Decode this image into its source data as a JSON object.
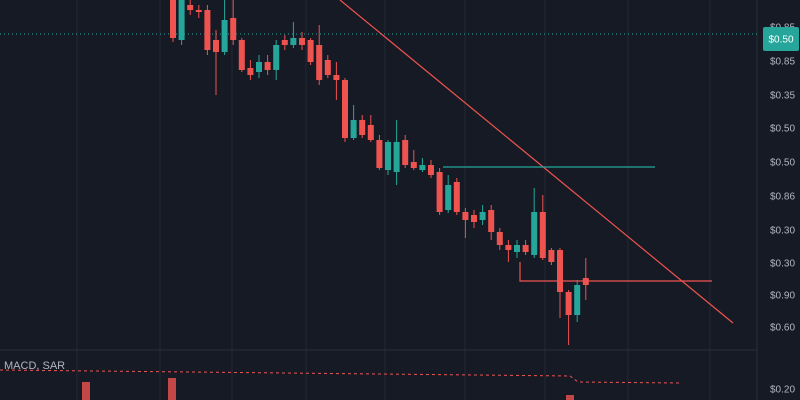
{
  "chart_data": {
    "type": "candlestick",
    "indicator_label": "MACD, SAR",
    "price_axis_labels": [
      "$0.85",
      "$0.85",
      "$0.35",
      "$0.50",
      "$0.50",
      "$0.86",
      "$0.30",
      "$0.30",
      "$0.90",
      "$0.60",
      "$0.20"
    ],
    "current_price_badge": "$0.50",
    "up_color": "#26a69a",
    "down_color": "#ef5350",
    "ylim": [
      0,
      100
    ],
    "open": [
      100,
      90,
      98.75,
      97.5,
      97.5,
      90,
      87,
      95.5,
      90,
      83,
      82,
      84.5,
      82.5,
      90,
      88.75,
      90.5,
      90,
      88.75,
      85,
      81.25,
      80,
      65.5,
      70,
      68.75,
      65,
      57.5,
      57,
      65,
      59.5,
      57.5,
      58.75,
      57,
      47.5,
      54.5,
      47,
      46.25,
      45,
      47.5,
      42,
      38.75,
      37,
      38.75,
      36.25,
      47,
      37.5,
      37.5,
      27,
      21.25,
      30.5
    ],
    "high": [
      100,
      100,
      100,
      98.75,
      98.75,
      92.5,
      100,
      100,
      90.5,
      85,
      86.25,
      86.25,
      90,
      91.25,
      94.5,
      92,
      90.5,
      93.75,
      86.25,
      84.5,
      80.5,
      73.75,
      71.25,
      71.25,
      66.25,
      65,
      70,
      66.25,
      62.5,
      60.5,
      60,
      58,
      56.25,
      55.5,
      48,
      47.5,
      48.75,
      48.75,
      43,
      40,
      40,
      40,
      53,
      51.25,
      38,
      38,
      27.5,
      30,
      35.5
    ],
    "low": [
      89.5,
      88.75,
      96.25,
      95.5,
      86.25,
      76.25,
      86.25,
      88.75,
      82,
      80,
      80.5,
      81.25,
      80,
      87.5,
      88,
      87.5,
      83.75,
      78.75,
      80.5,
      75,
      64.5,
      65,
      65.5,
      64.5,
      57.5,
      56.25,
      53.75,
      58,
      57.5,
      57,
      55.5,
      46.25,
      46.75,
      46.25,
      40.5,
      43,
      43.75,
      40,
      37.5,
      34.5,
      35.5,
      36.25,
      35.5,
      35,
      33.75,
      20.5,
      13.75,
      19.5,
      25
    ],
    "close": [
      90.5,
      100,
      97.5,
      97,
      87.5,
      87,
      95,
      90,
      82.5,
      81.25,
      84.5,
      82.5,
      88.75,
      88.75,
      90.5,
      88.75,
      84.5,
      80,
      81.25,
      80,
      65.5,
      70,
      66.25,
      65,
      58,
      64.5,
      64.5,
      58.75,
      58,
      58.75,
      56.25,
      47,
      53.75,
      47,
      45,
      44.5,
      47,
      42,
      38.75,
      37.5,
      38.75,
      37,
      47,
      35.5,
      34.5,
      27,
      21.25,
      28.75,
      28.75
    ]
  }
}
